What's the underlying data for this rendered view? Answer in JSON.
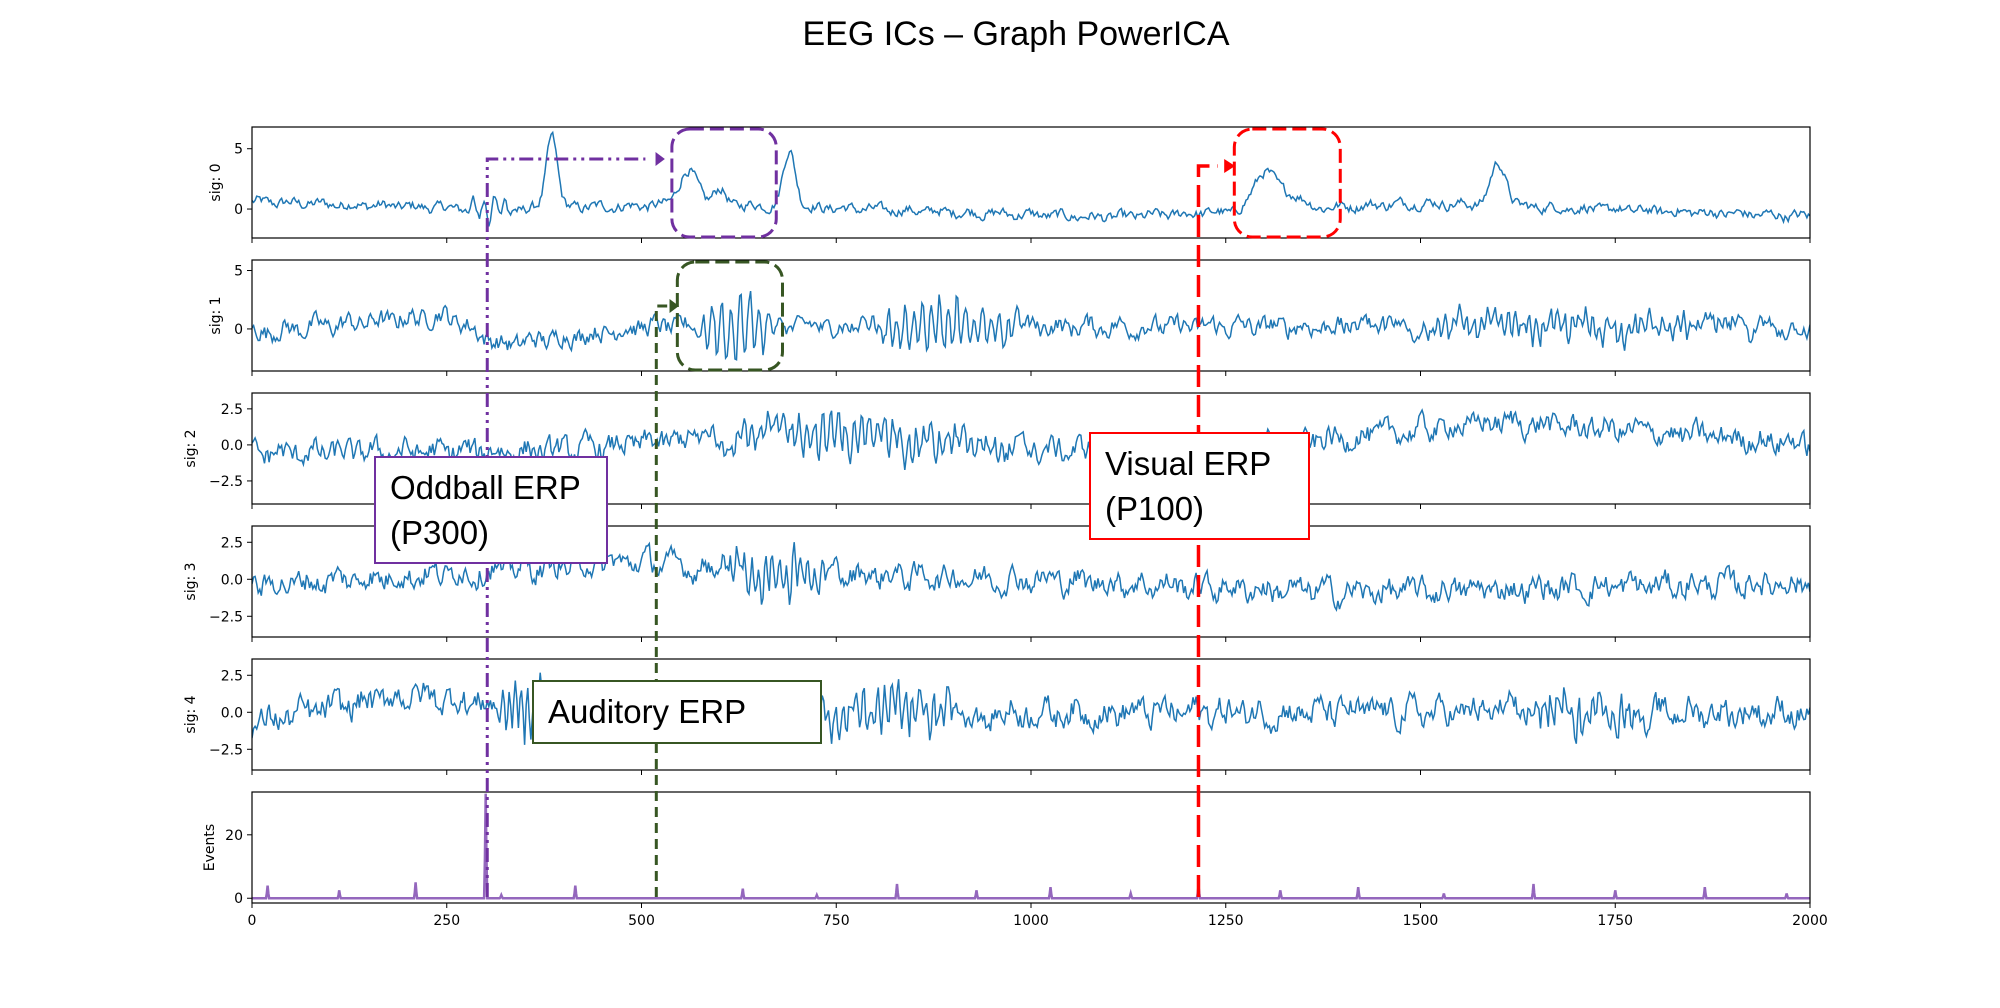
{
  "chart_data": {
    "type": "line",
    "title": "EEG ICs – Graph PowerICA",
    "x_range": [
      0,
      2000
    ],
    "x_ticks": [
      "0",
      "250",
      "500",
      "750",
      "1000",
      "1250",
      "1500",
      "1750",
      "2000"
    ],
    "x_tick_values": [
      0,
      250,
      500,
      750,
      1000,
      1250,
      1500,
      1750,
      2000
    ],
    "series_color": "#1f77b4",
    "events_color": "#9467bd",
    "panels": [
      {
        "ylabel": "sig: 0",
        "ylim": [
          -2.4,
          6.8
        ],
        "ticks": [
          {
            "v": 5,
            "label": "5"
          },
          {
            "v": 0,
            "label": "0"
          }
        ],
        "baseline": 0.2,
        "noise": 0.35,
        "drift": [
          [
            0,
            0.4
          ],
          [
            300,
            -0.2
          ],
          [
            600,
            0.2
          ],
          [
            1100,
            -0.9
          ],
          [
            1500,
            0.3
          ],
          [
            2000,
            -0.8
          ]
        ],
        "peaks": [
          [
            385,
            6.0,
            7
          ],
          [
            560,
            2.8,
            12
          ],
          [
            600,
            1.2,
            8
          ],
          [
            690,
            4.6,
            8
          ],
          [
            1300,
            3.2,
            14
          ],
          [
            1335,
            1.2,
            14
          ],
          [
            1600,
            3.5,
            10
          ]
        ],
        "osc": [
          [
            270,
            340,
            1.3,
            14
          ]
        ]
      },
      {
        "ylabel": "sig: 1",
        "ylim": [
          -3.6,
          5.9
        ],
        "ticks": [
          {
            "v": 5,
            "label": "5"
          },
          {
            "v": 0,
            "label": "0"
          }
        ],
        "baseline": 0.0,
        "noise": 0.7,
        "drift": [
          [
            0,
            -0.3
          ],
          [
            250,
            1.2
          ],
          [
            320,
            -1.4
          ],
          [
            500,
            0.2
          ],
          [
            2000,
            0.2
          ]
        ],
        "peaks": [],
        "osc": [
          [
            560,
            680,
            3.2,
            12
          ],
          [
            780,
            1000,
            2.5,
            11
          ],
          [
            1400,
            2000,
            1.0,
            9
          ]
        ]
      },
      {
        "ylabel": "sig: 2",
        "ylim": [
          -4.1,
          3.6
        ],
        "ticks": [
          {
            "v": 2.5,
            "label": "2.5"
          },
          {
            "v": 0,
            "label": "0.0"
          },
          {
            "v": -2.5,
            "label": "−2.5"
          }
        ],
        "baseline": 0.0,
        "noise": 0.7,
        "drift": [
          [
            0,
            -0.6
          ],
          [
            400,
            -0.4
          ],
          [
            700,
            1.0
          ],
          [
            1000,
            -0.4
          ],
          [
            1300,
            -0.1
          ],
          [
            1600,
            1.6
          ],
          [
            2000,
            0.1
          ]
        ],
        "peaks": [],
        "osc": [
          [
            560,
            1000,
            1.3,
            10
          ]
        ]
      },
      {
        "ylabel": "sig: 3",
        "ylim": [
          -3.9,
          3.6
        ],
        "ticks": [
          {
            "v": 2.5,
            "label": "2.5"
          },
          {
            "v": 0,
            "label": "0.0"
          },
          {
            "v": -2.5,
            "label": "−2.5"
          }
        ],
        "baseline": 0.0,
        "noise": 0.7,
        "drift": [
          [
            0,
            -0.4
          ],
          [
            500,
            1.2
          ],
          [
            600,
            0.6
          ],
          [
            1000,
            0.0
          ],
          [
            1400,
            -0.9
          ],
          [
            2000,
            -0.2
          ]
        ],
        "peaks": [],
        "osc": [
          [
            580,
            760,
            1.5,
            9
          ]
        ]
      },
      {
        "ylabel": "sig: 4",
        "ylim": [
          -3.9,
          3.6
        ],
        "ticks": [
          {
            "v": 2.5,
            "label": "2.5"
          },
          {
            "v": 0,
            "label": "0.0"
          },
          {
            "v": -2.5,
            "label": "−2.5"
          }
        ],
        "baseline": 0.0,
        "noise": 0.8,
        "drift": [
          [
            0,
            -0.8
          ],
          [
            200,
            1.2
          ],
          [
            350,
            0.3
          ],
          [
            700,
            0.0
          ],
          [
            2000,
            0.0
          ]
        ],
        "peaks": [],
        "osc": [
          [
            300,
            420,
            2.0,
            8
          ],
          [
            680,
            950,
            1.6,
            9
          ],
          [
            1600,
            1800,
            1.5,
            9
          ]
        ]
      }
    ],
    "events": {
      "ylabel": "Events",
      "ylim": [
        -1.5,
        33.5
      ],
      "ticks": [
        {
          "v": 20,
          "label": "20"
        },
        {
          "v": 0,
          "label": "0"
        }
      ],
      "spikes": [
        [
          20,
          4
        ],
        [
          112,
          2.5
        ],
        [
          210,
          5
        ],
        [
          300,
          33
        ],
        [
          320,
          1
        ],
        [
          415,
          4
        ],
        [
          630,
          3
        ],
        [
          725,
          1
        ],
        [
          828,
          4.5
        ],
        [
          930,
          2.5
        ],
        [
          1025,
          3.5
        ],
        [
          1128,
          1.5
        ],
        [
          1215,
          4
        ],
        [
          1320,
          2.5
        ],
        [
          1420,
          3.5
        ],
        [
          1530,
          1.5
        ],
        [
          1645,
          4.5
        ],
        [
          1750,
          2.5
        ],
        [
          1865,
          3.5
        ],
        [
          1970,
          1.5
        ]
      ]
    },
    "annotations": [
      {
        "text_lines": [
          "Oddball ERP",
          "(P300)"
        ],
        "color": "#7030a0"
      },
      {
        "text_lines": [
          "Visual ERP",
          "(P100)"
        ],
        "color": "#ff0000"
      },
      {
        "text_lines": [
          "Auditory ERP"
        ],
        "color": "#375623"
      }
    ]
  }
}
